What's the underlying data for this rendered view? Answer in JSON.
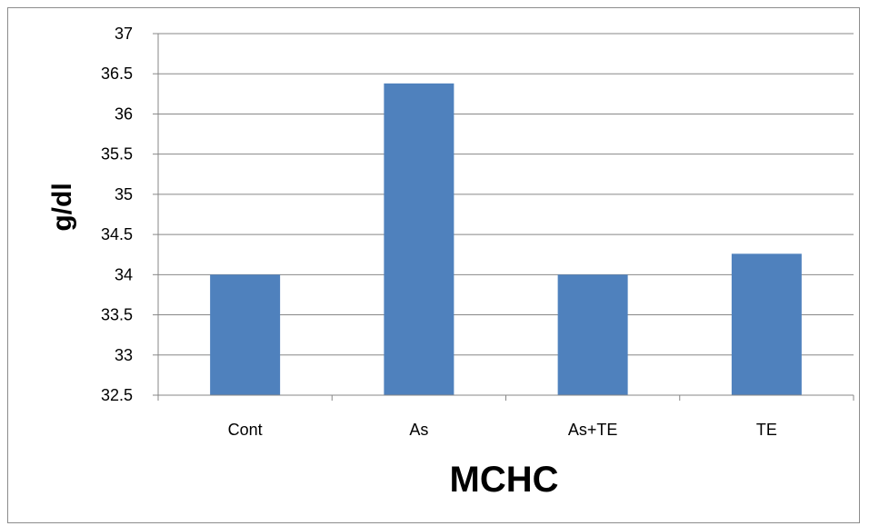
{
  "chart_data": {
    "type": "bar",
    "categories": [
      "Cont",
      "As",
      "As+TE",
      "TE"
    ],
    "values": [
      34.0,
      36.38,
      34.0,
      34.26
    ],
    "title": "",
    "xlabel": "MCHC",
    "ylabel": "g/dl",
    "ylim": [
      32.5,
      37
    ],
    "yticks": [
      "32.5",
      "33",
      "33.5",
      "34",
      "34.5",
      "35",
      "35.5",
      "36",
      "36.5",
      "37"
    ],
    "grid": true,
    "legend": "none",
    "bar_color": "#4f81bd"
  }
}
